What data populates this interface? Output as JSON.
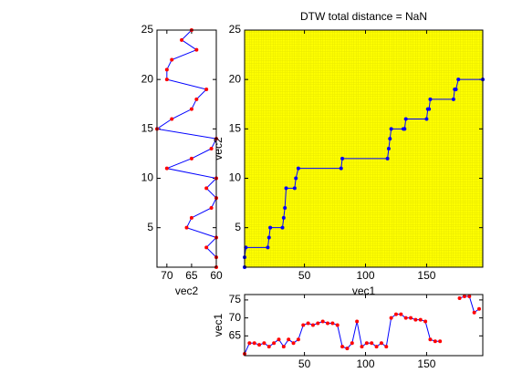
{
  "chart_data": [
    {
      "type": "line",
      "xlabel": "vec2",
      "x": [
        60,
        60,
        62,
        60,
        66,
        65,
        61,
        60,
        62,
        60,
        70,
        65,
        61,
        60,
        72,
        69,
        65,
        64,
        62,
        70,
        70,
        69,
        64,
        67,
        65
      ],
      "values": [
        1,
        2,
        3,
        4,
        5,
        6,
        7,
        8,
        9,
        10,
        11,
        12,
        13,
        14,
        15,
        16,
        17,
        18,
        19,
        20,
        21,
        22,
        23,
        24,
        25
      ],
      "line_color": "#0000ff",
      "marker_color": "#ff0000",
      "xlim": [
        72,
        60
      ],
      "xticks": [
        70,
        65,
        60
      ],
      "ylim": [
        1,
        25
      ],
      "yticks": [
        5,
        10,
        15,
        20,
        25
      ]
    },
    {
      "type": "line",
      "title": "DTW total distance = NaN",
      "xlabel": "vec1",
      "ylabel": "vec2",
      "x": [
        1,
        1,
        2,
        20,
        21,
        22,
        32,
        33,
        34,
        35,
        42,
        43,
        45,
        80,
        81,
        118,
        119,
        120,
        121,
        131,
        132,
        133,
        150,
        151,
        152,
        153,
        172,
        173,
        174,
        176,
        196
      ],
      "values": [
        1,
        2,
        3,
        3,
        4,
        5,
        5,
        6,
        7,
        9,
        9,
        10,
        11,
        11,
        12,
        12,
        13,
        14,
        15,
        15,
        15,
        16,
        16,
        17,
        17,
        18,
        18,
        19,
        19,
        20,
        20
      ],
      "line_color": "#0000ff",
      "marker_color": "#0000ff",
      "background": "#ffff00",
      "xlim": [
        1,
        196
      ],
      "xticks": [
        50,
        100,
        150
      ],
      "ylim": [
        1,
        25
      ],
      "yticks": [
        5,
        10,
        15,
        20,
        25
      ]
    },
    {
      "type": "line",
      "ylabel": "vec1",
      "x": [
        1,
        5,
        9,
        13,
        17,
        21,
        25,
        29,
        33,
        37,
        41,
        45,
        49,
        53,
        57,
        61,
        65,
        69,
        73,
        77,
        81,
        85,
        89,
        93,
        97,
        101,
        105,
        109,
        113,
        117,
        121,
        125,
        129,
        133,
        137,
        141,
        145,
        149,
        153,
        157,
        161,
        165,
        169,
        173,
        177,
        181,
        185,
        189,
        193
      ],
      "values": [
        60,
        63,
        63,
        62.5,
        63,
        62,
        63,
        64,
        62,
        64,
        63,
        64,
        68,
        68.5,
        68,
        68.5,
        69,
        68.5,
        68.5,
        68,
        62,
        61.5,
        63,
        69,
        62,
        63,
        63,
        62,
        63,
        62,
        70,
        71,
        71,
        70,
        70,
        69.5,
        69.5,
        69,
        64,
        63.5,
        63.5,
        null,
        null,
        null,
        75.5,
        76,
        76,
        71.5,
        72.5
      ],
      "line_color": "#0000ff",
      "marker_color": "#ff0000",
      "xlim": [
        1,
        196
      ],
      "xticks": [
        50,
        100,
        150
      ],
      "ylim": [
        59.5,
        76.5
      ],
      "yticks": [
        65,
        70,
        75
      ]
    }
  ]
}
